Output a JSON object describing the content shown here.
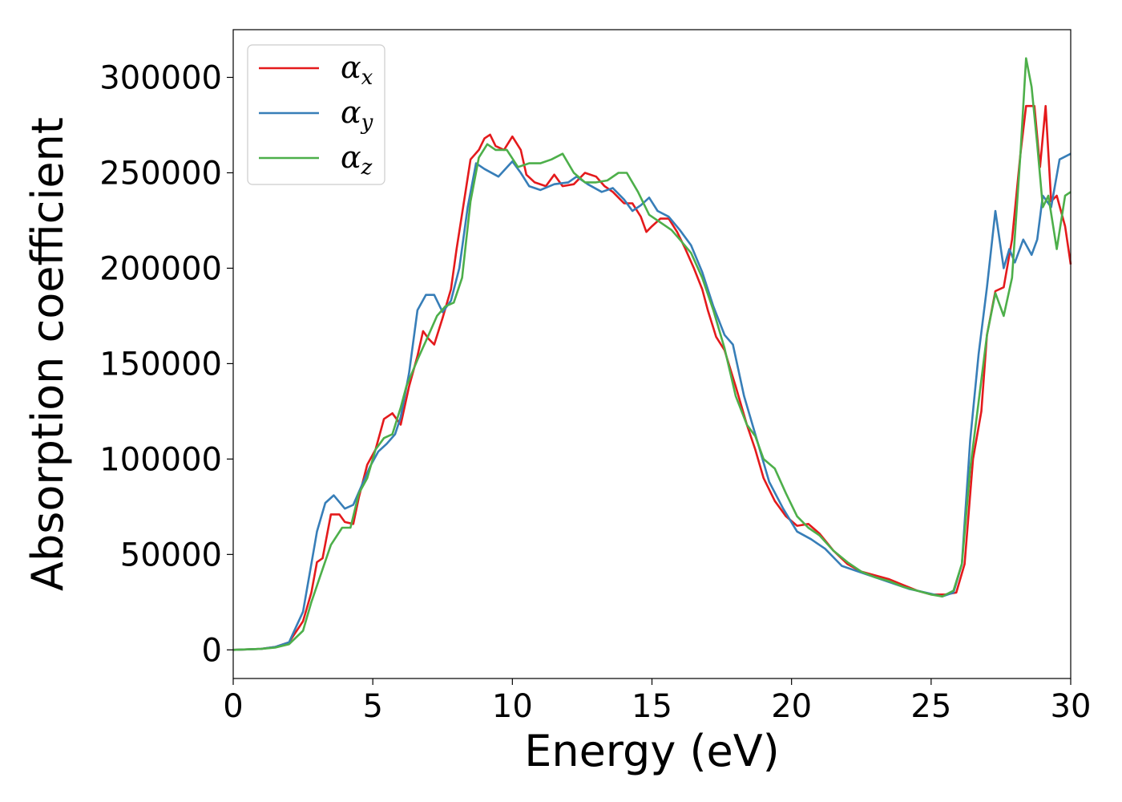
{
  "chart_data": {
    "type": "line",
    "title": "",
    "xlabel": "Energy (eV)",
    "ylabel": "Absorption coefficient",
    "xlim": [
      0,
      30
    ],
    "ylim": [
      -15000,
      325000
    ],
    "x_ticks": [
      "0",
      "5",
      "10",
      "15",
      "20",
      "25",
      "30"
    ],
    "y_ticks": [
      "0",
      "50000",
      "100000",
      "150000",
      "200000",
      "250000",
      "300000"
    ],
    "grid": false,
    "legend_position": "top-left",
    "series": [
      {
        "name": "α",
        "subscript": "x",
        "color": "#e41a1c",
        "points": [
          [
            0,
            0
          ],
          [
            1,
            500
          ],
          [
            1.5,
            1500
          ],
          [
            2,
            4000
          ],
          [
            2.5,
            15000
          ],
          [
            2.8,
            30000
          ],
          [
            3.0,
            46000
          ],
          [
            3.2,
            48000
          ],
          [
            3.5,
            71000
          ],
          [
            3.8,
            71000
          ],
          [
            4.0,
            67000
          ],
          [
            4.3,
            66000
          ],
          [
            4.5,
            80000
          ],
          [
            4.8,
            97000
          ],
          [
            5.1,
            105000
          ],
          [
            5.4,
            121000
          ],
          [
            5.7,
            124000
          ],
          [
            6.0,
            118000
          ],
          [
            6.3,
            138000
          ],
          [
            6.6,
            154000
          ],
          [
            6.8,
            167000
          ],
          [
            7.0,
            163000
          ],
          [
            7.2,
            160000
          ],
          [
            7.5,
            174000
          ],
          [
            7.8,
            189000
          ],
          [
            8.0,
            210000
          ],
          [
            8.3,
            238000
          ],
          [
            8.5,
            257000
          ],
          [
            8.8,
            262000
          ],
          [
            9.0,
            268000
          ],
          [
            9.2,
            270000
          ],
          [
            9.4,
            264000
          ],
          [
            9.7,
            262000
          ],
          [
            10.0,
            269000
          ],
          [
            10.3,
            262000
          ],
          [
            10.5,
            249000
          ],
          [
            10.8,
            245000
          ],
          [
            11.2,
            243000
          ],
          [
            11.5,
            249000
          ],
          [
            11.8,
            243000
          ],
          [
            12.2,
            244000
          ],
          [
            12.6,
            250000
          ],
          [
            13.0,
            248000
          ],
          [
            13.3,
            243000
          ],
          [
            13.6,
            240000
          ],
          [
            14.0,
            234000
          ],
          [
            14.3,
            234000
          ],
          [
            14.6,
            227000
          ],
          [
            14.8,
            219000
          ],
          [
            15.0,
            222000
          ],
          [
            15.3,
            226000
          ],
          [
            15.6,
            226000
          ],
          [
            15.9,
            219000
          ],
          [
            16.2,
            210000
          ],
          [
            16.5,
            200000
          ],
          [
            16.8,
            189000
          ],
          [
            17.0,
            178000
          ],
          [
            17.3,
            164000
          ],
          [
            17.6,
            157000
          ],
          [
            18.0,
            138000
          ],
          [
            18.4,
            118000
          ],
          [
            18.7,
            105000
          ],
          [
            19.0,
            90000
          ],
          [
            19.4,
            78000
          ],
          [
            19.8,
            70000
          ],
          [
            20.2,
            65000
          ],
          [
            20.6,
            66000
          ],
          [
            21.0,
            61000
          ],
          [
            21.5,
            52000
          ],
          [
            22.0,
            45000
          ],
          [
            22.5,
            41000
          ],
          [
            23.0,
            39000
          ],
          [
            23.5,
            37000
          ],
          [
            24.0,
            34000
          ],
          [
            24.5,
            31000
          ],
          [
            25.0,
            29000
          ],
          [
            25.5,
            29000
          ],
          [
            25.9,
            30000
          ],
          [
            26.2,
            45000
          ],
          [
            26.5,
            100000
          ],
          [
            26.8,
            125000
          ],
          [
            27.0,
            165000
          ],
          [
            27.3,
            188000
          ],
          [
            27.6,
            190000
          ],
          [
            27.9,
            215000
          ],
          [
            28.2,
            260000
          ],
          [
            28.4,
            285000
          ],
          [
            28.7,
            285000
          ],
          [
            28.9,
            253000
          ],
          [
            29.1,
            285000
          ],
          [
            29.3,
            235000
          ],
          [
            29.5,
            238000
          ],
          [
            29.8,
            222000
          ],
          [
            30.0,
            202000
          ]
        ]
      },
      {
        "name": "α",
        "subscript": "y",
        "color": "#377eb8",
        "points": [
          [
            0,
            0
          ],
          [
            1,
            500
          ],
          [
            1.5,
            1500
          ],
          [
            2,
            4000
          ],
          [
            2.5,
            20000
          ],
          [
            2.8,
            45000
          ],
          [
            3.0,
            62000
          ],
          [
            3.3,
            77000
          ],
          [
            3.6,
            81000
          ],
          [
            4.0,
            74000
          ],
          [
            4.3,
            76000
          ],
          [
            4.6,
            86000
          ],
          [
            4.9,
            96000
          ],
          [
            5.2,
            104000
          ],
          [
            5.5,
            108000
          ],
          [
            5.8,
            113000
          ],
          [
            6.0,
            122000
          ],
          [
            6.3,
            145000
          ],
          [
            6.6,
            178000
          ],
          [
            6.9,
            186000
          ],
          [
            7.2,
            186000
          ],
          [
            7.5,
            177000
          ],
          [
            7.8,
            183000
          ],
          [
            8.1,
            200000
          ],
          [
            8.4,
            232000
          ],
          [
            8.7,
            255000
          ],
          [
            9.0,
            252000
          ],
          [
            9.5,
            248000
          ],
          [
            10.0,
            256000
          ],
          [
            10.3,
            250000
          ],
          [
            10.6,
            243000
          ],
          [
            11.0,
            241000
          ],
          [
            11.5,
            244000
          ],
          [
            12.0,
            245000
          ],
          [
            12.3,
            248000
          ],
          [
            12.7,
            244000
          ],
          [
            13.2,
            240000
          ],
          [
            13.6,
            242000
          ],
          [
            14.0,
            236000
          ],
          [
            14.3,
            230000
          ],
          [
            14.6,
            233000
          ],
          [
            14.9,
            237000
          ],
          [
            15.2,
            230000
          ],
          [
            15.6,
            227000
          ],
          [
            16.0,
            220000
          ],
          [
            16.4,
            212000
          ],
          [
            16.8,
            198000
          ],
          [
            17.2,
            180000
          ],
          [
            17.6,
            165000
          ],
          [
            17.9,
            160000
          ],
          [
            18.3,
            133000
          ],
          [
            18.7,
            113000
          ],
          [
            19.2,
            88000
          ],
          [
            19.7,
            74000
          ],
          [
            20.2,
            62000
          ],
          [
            20.7,
            58000
          ],
          [
            21.2,
            53000
          ],
          [
            21.8,
            44000
          ],
          [
            22.4,
            41000
          ],
          [
            23.0,
            38000
          ],
          [
            23.6,
            35000
          ],
          [
            24.2,
            32000
          ],
          [
            24.8,
            30000
          ],
          [
            25.4,
            28000
          ],
          [
            25.8,
            30000
          ],
          [
            26.1,
            45000
          ],
          [
            26.4,
            110000
          ],
          [
            26.7,
            155000
          ],
          [
            27.0,
            190000
          ],
          [
            27.3,
            230000
          ],
          [
            27.6,
            200000
          ],
          [
            27.8,
            210000
          ],
          [
            28.0,
            203000
          ],
          [
            28.3,
            215000
          ],
          [
            28.6,
            207000
          ],
          [
            28.8,
            215000
          ],
          [
            29.0,
            238000
          ],
          [
            29.3,
            232000
          ],
          [
            29.6,
            257000
          ],
          [
            30.0,
            260000
          ]
        ]
      },
      {
        "name": "α",
        "subscript": "z",
        "color": "#4daf4a",
        "points": [
          [
            0,
            0
          ],
          [
            1,
            500
          ],
          [
            1.5,
            1200
          ],
          [
            2,
            3000
          ],
          [
            2.5,
            10000
          ],
          [
            2.8,
            25000
          ],
          [
            3.1,
            38000
          ],
          [
            3.5,
            55000
          ],
          [
            3.9,
            64000
          ],
          [
            4.2,
            64000
          ],
          [
            4.5,
            82000
          ],
          [
            4.8,
            90000
          ],
          [
            5.1,
            105000
          ],
          [
            5.4,
            111000
          ],
          [
            5.7,
            113000
          ],
          [
            6.0,
            127000
          ],
          [
            6.2,
            138000
          ],
          [
            6.6,
            152000
          ],
          [
            7.0,
            165000
          ],
          [
            7.3,
            175000
          ],
          [
            7.6,
            180000
          ],
          [
            7.9,
            182000
          ],
          [
            8.2,
            195000
          ],
          [
            8.5,
            235000
          ],
          [
            8.8,
            258000
          ],
          [
            9.1,
            265000
          ],
          [
            9.4,
            262000
          ],
          [
            9.8,
            262000
          ],
          [
            10.2,
            253000
          ],
          [
            10.6,
            255000
          ],
          [
            11.0,
            255000
          ],
          [
            11.4,
            257000
          ],
          [
            11.8,
            260000
          ],
          [
            12.2,
            250000
          ],
          [
            12.6,
            245000
          ],
          [
            13.0,
            245000
          ],
          [
            13.4,
            246000
          ],
          [
            13.8,
            250000
          ],
          [
            14.1,
            250000
          ],
          [
            14.5,
            240000
          ],
          [
            14.9,
            228000
          ],
          [
            15.3,
            224000
          ],
          [
            15.7,
            220000
          ],
          [
            16.0,
            215000
          ],
          [
            16.4,
            208000
          ],
          [
            16.8,
            195000
          ],
          [
            17.2,
            178000
          ],
          [
            17.6,
            158000
          ],
          [
            18.0,
            133000
          ],
          [
            18.4,
            118000
          ],
          [
            18.7,
            112000
          ],
          [
            19.0,
            100000
          ],
          [
            19.4,
            95000
          ],
          [
            19.8,
            82000
          ],
          [
            20.2,
            70000
          ],
          [
            20.6,
            64000
          ],
          [
            21.0,
            60000
          ],
          [
            21.5,
            52000
          ],
          [
            22.0,
            46000
          ],
          [
            22.5,
            41000
          ],
          [
            23.0,
            38000
          ],
          [
            23.5,
            36000
          ],
          [
            24.0,
            33000
          ],
          [
            24.5,
            31000
          ],
          [
            25.0,
            29000
          ],
          [
            25.4,
            28000
          ],
          [
            25.8,
            31000
          ],
          [
            26.1,
            45000
          ],
          [
            26.4,
            95000
          ],
          [
            26.7,
            130000
          ],
          [
            27.0,
            165000
          ],
          [
            27.3,
            187000
          ],
          [
            27.6,
            175000
          ],
          [
            27.9,
            195000
          ],
          [
            28.2,
            260000
          ],
          [
            28.4,
            310000
          ],
          [
            28.6,
            295000
          ],
          [
            28.8,
            265000
          ],
          [
            29.0,
            232000
          ],
          [
            29.2,
            238000
          ],
          [
            29.5,
            210000
          ],
          [
            29.8,
            238000
          ],
          [
            30.0,
            240000
          ]
        ]
      }
    ]
  }
}
